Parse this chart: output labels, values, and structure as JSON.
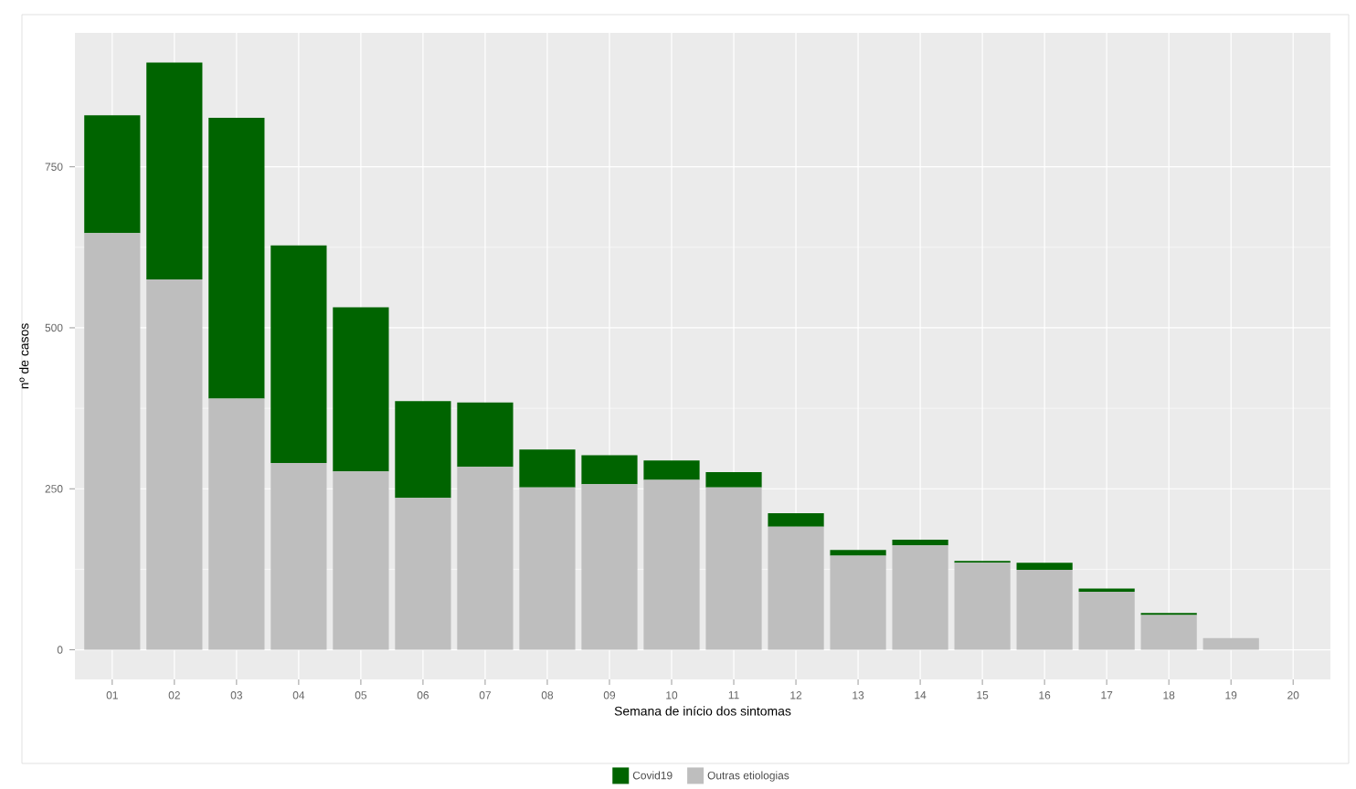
{
  "chart_data": {
    "type": "bar",
    "stacked": true,
    "xlabel": "Semana de início dos sintomas",
    "ylabel": "nº de casos",
    "categories": [
      "01",
      "02",
      "03",
      "04",
      "05",
      "06",
      "07",
      "08",
      "09",
      "10",
      "11",
      "12",
      "13",
      "14",
      "15",
      "16",
      "17",
      "18",
      "19",
      "20"
    ],
    "series": [
      {
        "name": "Outras etiologias",
        "color": "#bebebe",
        "values": [
          647,
          575,
          390,
          290,
          277,
          236,
          284,
          252,
          257,
          264,
          252,
          191,
          146,
          162,
          135,
          124,
          90,
          54,
          18,
          null
        ]
      },
      {
        "name": "Covid19",
        "color": "#006400",
        "values": [
          183,
          337,
          436,
          338,
          255,
          150,
          100,
          59,
          45,
          30,
          24,
          21,
          9,
          9,
          3,
          11,
          5,
          3,
          0,
          null
        ]
      }
    ],
    "ylim": [
      -46,
      958
    ],
    "yticks": [
      0,
      250,
      500,
      750
    ],
    "grid": true,
    "legend": "bottom"
  }
}
